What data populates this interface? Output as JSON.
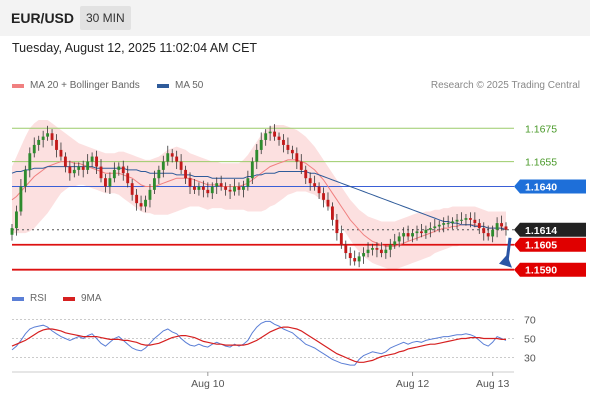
{
  "header": {
    "symbol": "EUR/USD",
    "timeframe": "30 MIN"
  },
  "datetime": "Tuesday, August 12, 2025 11:02:04 AM CET",
  "legend": {
    "ma20_label": "MA 20 + Bollinger Bands",
    "ma20_color": "#f08080",
    "ma50_label": "MA 50",
    "ma50_color": "#2f5b9a"
  },
  "rsi_legend": {
    "rsi_label": "RSI",
    "rsi_color": "#5b7fd6",
    "ma_label": "9MA",
    "ma_color": "#d62020"
  },
  "credit": "Research © 2025 Trading Central",
  "chart_data": [
    {
      "type": "candlestick",
      "ylim": [
        1.1582,
        1.1686
      ],
      "x_ticks": [
        "Aug 10",
        "Aug 12",
        "Aug 13"
      ],
      "levels": [
        {
          "value": 1.1675,
          "label": "1.1675",
          "kind": "resistance-green"
        },
        {
          "value": 1.1655,
          "label": "1.1655",
          "kind": "resistance-green"
        },
        {
          "value": 1.164,
          "label": "1.1640",
          "kind": "resistance-blue"
        },
        {
          "value": 1.1614,
          "label": "1.1614",
          "kind": "last-price"
        },
        {
          "value": 1.1605,
          "label": "1.1605",
          "kind": "support-red"
        },
        {
          "value": 1.159,
          "label": "1.1590",
          "kind": "support-red"
        }
      ],
      "close": [
        1.1615,
        1.1625,
        1.164,
        1.165,
        1.166,
        1.1665,
        1.1668,
        1.167,
        1.1672,
        1.1668,
        1.1662,
        1.1658,
        1.1652,
        1.1648,
        1.165,
        1.1652,
        1.165,
        1.1655,
        1.1658,
        1.1652,
        1.1645,
        1.164,
        1.1645,
        1.165,
        1.1652,
        1.1648,
        1.1642,
        1.1635,
        1.163,
        1.1628,
        1.1632,
        1.1638,
        1.1645,
        1.165,
        1.1655,
        1.166,
        1.1658,
        1.1655,
        1.165,
        1.1645,
        1.164,
        1.1638,
        1.164,
        1.1638,
        1.1636,
        1.164,
        1.1642,
        1.164,
        1.1638,
        1.1637,
        1.164,
        1.1638,
        1.164,
        1.1645,
        1.1655,
        1.1662,
        1.1668,
        1.1672,
        1.1673,
        1.167,
        1.1668,
        1.1665,
        1.1662,
        1.166,
        1.1655,
        1.165,
        1.1645,
        1.1642,
        1.164,
        1.1636,
        1.1632,
        1.1628,
        1.162,
        1.1612,
        1.1605,
        1.16,
        1.1597,
        1.1595,
        1.1598,
        1.16,
        1.1602,
        1.1603,
        1.1602,
        1.16,
        1.1602,
        1.1605,
        1.1607,
        1.161,
        1.1612,
        1.161,
        1.1612,
        1.1613,
        1.1612,
        1.1614,
        1.1615,
        1.1616,
        1.1617,
        1.1618,
        1.1618,
        1.1619,
        1.162,
        1.162,
        1.1621,
        1.162,
        1.1618,
        1.1615,
        1.1612,
        1.161,
        1.1614,
        1.1618,
        1.1616,
        1.1614
      ],
      "ma20": [
        1.1632,
        1.1634,
        1.1637,
        1.164,
        1.1643,
        1.1646,
        1.1648,
        1.165,
        1.1652,
        1.1653,
        1.1654,
        1.1655,
        1.1655,
        1.1655,
        1.1654,
        1.1654,
        1.1653,
        1.1652,
        1.1651,
        1.165,
        1.1649,
        1.1648,
        1.1648,
        1.1648,
        1.1648,
        1.1647,
        1.1646,
        1.1645,
        1.1643,
        1.1641,
        1.164,
        1.164,
        1.164,
        1.1641,
        1.1642,
        1.1643,
        1.1644,
        1.1645,
        1.1645,
        1.1645,
        1.1645,
        1.1644,
        1.1643,
        1.1642,
        1.1641,
        1.1641,
        1.1641,
        1.164,
        1.164,
        1.164,
        1.164,
        1.164,
        1.1641,
        1.1642,
        1.1644,
        1.1646,
        1.1648,
        1.165,
        1.1652,
        1.1653,
        1.1654,
        1.1655,
        1.1656,
        1.1656,
        1.1656,
        1.1655,
        1.1654,
        1.1652,
        1.165,
        1.1647,
        1.1644,
        1.164,
        1.1636,
        1.1632,
        1.1628,
        1.1624,
        1.162,
        1.1617,
        1.1614,
        1.1611,
        1.1609,
        1.1607,
        1.1606,
        1.1605,
        1.1604,
        1.1604,
        1.1604,
        1.1605,
        1.1606,
        1.1607,
        1.1608,
        1.1609,
        1.161,
        1.1611,
        1.1612,
        1.1613,
        1.1614,
        1.1615,
        1.1615,
        1.1616,
        1.1616,
        1.1617,
        1.1617,
        1.1617,
        1.1617,
        1.1616,
        1.1616,
        1.1615,
        1.1615,
        1.1615,
        1.1615,
        1.1615
      ],
      "bb_upper": [
        1.1652,
        1.1658,
        1.1664,
        1.167,
        1.1675,
        1.1678,
        1.168,
        1.168,
        1.168,
        1.1678,
        1.1676,
        1.1674,
        1.1672,
        1.167,
        1.1668,
        1.1666,
        1.1665,
        1.1664,
        1.1663,
        1.1662,
        1.1661,
        1.166,
        1.166,
        1.166,
        1.1661,
        1.1661,
        1.166,
        1.1659,
        1.1658,
        1.1657,
        1.1656,
        1.1656,
        1.1657,
        1.1658,
        1.166,
        1.1662,
        1.1663,
        1.1664,
        1.1663,
        1.1662,
        1.166,
        1.1659,
        1.1658,
        1.1657,
        1.1656,
        1.1655,
        1.1655,
        1.1654,
        1.1654,
        1.1654,
        1.1654,
        1.1654,
        1.1656,
        1.1659,
        1.1663,
        1.1667,
        1.1671,
        1.1674,
        1.1676,
        1.1677,
        1.1677,
        1.1677,
        1.1676,
        1.1675,
        1.1674,
        1.1672,
        1.167,
        1.1667,
        1.1664,
        1.166,
        1.1656,
        1.1652,
        1.1648,
        1.1644,
        1.164,
        1.1636,
        1.1632,
        1.1629,
        1.1626,
        1.1624,
        1.1622,
        1.1621,
        1.162,
        1.1619,
        1.1619,
        1.1619,
        1.1619,
        1.162,
        1.1621,
        1.1622,
        1.1623,
        1.1624,
        1.1624,
        1.1625,
        1.1625,
        1.1626,
        1.1626,
        1.1627,
        1.1627,
        1.1628,
        1.1628,
        1.1628,
        1.1628,
        1.1628,
        1.1628,
        1.1627,
        1.1626,
        1.1625,
        1.1625,
        1.1625,
        1.1625,
        1.1625
      ],
      "bb_lower": [
        1.1612,
        1.1612,
        1.1612,
        1.1612,
        1.1613,
        1.1615,
        1.1618,
        1.1621,
        1.1624,
        1.1628,
        1.1632,
        1.1636,
        1.1638,
        1.164,
        1.164,
        1.1641,
        1.1641,
        1.164,
        1.1639,
        1.1638,
        1.1637,
        1.1636,
        1.1636,
        1.1636,
        1.1635,
        1.1633,
        1.1631,
        1.1629,
        1.1627,
        1.1625,
        1.1624,
        1.1624,
        1.1623,
        1.1623,
        1.1623,
        1.1623,
        1.1624,
        1.1625,
        1.1626,
        1.1627,
        1.1628,
        1.1628,
        1.1628,
        1.1627,
        1.1626,
        1.1627,
        1.1627,
        1.1627,
        1.1626,
        1.1626,
        1.1626,
        1.1626,
        1.1626,
        1.1625,
        1.1625,
        1.1625,
        1.1625,
        1.1626,
        1.1628,
        1.1629,
        1.1631,
        1.1633,
        1.1635,
        1.1636,
        1.1637,
        1.1637,
        1.1637,
        1.1636,
        1.1635,
        1.1633,
        1.1631,
        1.1628,
        1.1624,
        1.162,
        1.1616,
        1.1612,
        1.1608,
        1.1604,
        1.1601,
        1.1598,
        1.1596,
        1.1594,
        1.1593,
        1.1592,
        1.1591,
        1.159,
        1.159,
        1.1591,
        1.1592,
        1.1593,
        1.1594,
        1.1595,
        1.1596,
        1.1597,
        1.1598,
        1.16,
        1.1601,
        1.1602,
        1.1603,
        1.1604,
        1.1604,
        1.1605,
        1.1605,
        1.1605,
        1.1605,
        1.1605,
        1.1605,
        1.1605,
        1.1605,
        1.1605,
        1.1605,
        1.1605
      ],
      "ma50": [
        1.1648,
        1.1649,
        1.1649,
        1.165,
        1.165,
        1.1651,
        1.1651,
        1.1651,
        1.1652,
        1.1652,
        1.1652,
        1.1652,
        1.1652,
        1.1652,
        1.1652,
        1.1652,
        1.1652,
        1.1652,
        1.1652,
        1.1651,
        1.1651,
        1.1651,
        1.1651,
        1.1651,
        1.1651,
        1.1651,
        1.165,
        1.165,
        1.165,
        1.1649,
        1.1649,
        1.1648,
        1.1648,
        1.1648,
        1.1648,
        1.1648,
        1.1648,
        1.1647,
        1.1647,
        1.1647,
        1.1647,
        1.1646,
        1.1646,
        1.1646,
        1.1646,
        1.1645,
        1.1645,
        1.1645,
        1.1645,
        1.1645,
        1.1645,
        1.1645,
        1.1645,
        1.1646,
        1.1646,
        1.1647,
        1.1647,
        1.1648,
        1.1648,
        1.1648,
        1.1649,
        1.1649,
        1.1649,
        1.1649,
        1.1649,
        1.1649,
        1.1649,
        1.1648,
        1.1648,
        1.1647,
        1.1646,
        1.1645,
        1.1644,
        1.1643,
        1.1642,
        1.1641,
        1.164,
        1.1639,
        1.1638,
        1.1637,
        1.1636,
        1.1635,
        1.1634,
        1.1633,
        1.1632,
        1.1631,
        1.163,
        1.1629,
        1.1628,
        1.1627,
        1.1626,
        1.1625,
        1.1624,
        1.1623,
        1.1622,
        1.1621,
        1.162,
        1.1619,
        1.1619,
        1.1618,
        1.1618,
        1.1617,
        1.1617,
        1.1617,
        1.1616,
        1.1616,
        1.1616,
        1.1615,
        1.1615,
        1.1615,
        1.1615,
        1.1614
      ]
    },
    {
      "type": "line",
      "ylim": [
        20,
        80
      ],
      "y_ticks": [
        70,
        50,
        30
      ],
      "series": [
        {
          "name": "RSI",
          "values": [
            38,
            42,
            48,
            55,
            60,
            62,
            63,
            64,
            62,
            58,
            55,
            52,
            50,
            48,
            50,
            52,
            50,
            53,
            55,
            50,
            45,
            42,
            46,
            50,
            52,
            48,
            44,
            40,
            38,
            37,
            40,
            45,
            50,
            54,
            58,
            60,
            57,
            55,
            50,
            46,
            43,
            42,
            44,
            42,
            41,
            44,
            46,
            44,
            42,
            41,
            44,
            42,
            44,
            48,
            56,
            62,
            66,
            68,
            68,
            65,
            63,
            60,
            58,
            56,
            52,
            48,
            44,
            42,
            40,
            37,
            34,
            31,
            28,
            26,
            24,
            23,
            22,
            22,
            28,
            32,
            34,
            36,
            35,
            34,
            36,
            40,
            42,
            44,
            46,
            44,
            46,
            47,
            46,
            48,
            49,
            50,
            51,
            52,
            52,
            53,
            54,
            54,
            55,
            54,
            52,
            48,
            44,
            42,
            46,
            52,
            50,
            48
          ]
        },
        {
          "name": "9MA",
          "values": [
            42,
            44,
            46,
            48,
            51,
            54,
            57,
            59,
            60,
            60,
            59,
            58,
            56,
            55,
            54,
            53,
            52,
            52,
            52,
            52,
            51,
            50,
            49,
            49,
            49,
            48,
            48,
            47,
            46,
            44,
            43,
            43,
            44,
            45,
            47,
            49,
            51,
            52,
            53,
            53,
            52,
            51,
            49,
            47,
            46,
            45,
            44,
            44,
            43,
            43,
            43,
            43,
            43,
            44,
            46,
            48,
            51,
            54,
            57,
            59,
            61,
            62,
            62,
            61,
            60,
            58,
            55,
            52,
            49,
            46,
            43,
            40,
            37,
            34,
            32,
            30,
            28,
            26,
            25,
            25,
            26,
            27,
            29,
            31,
            32,
            33,
            34,
            36,
            37,
            39,
            40,
            41,
            42,
            43,
            44,
            44,
            45,
            46,
            47,
            48,
            49,
            50,
            50,
            51,
            51,
            51,
            50,
            50,
            50,
            50,
            49,
            49
          ]
        }
      ]
    }
  ]
}
